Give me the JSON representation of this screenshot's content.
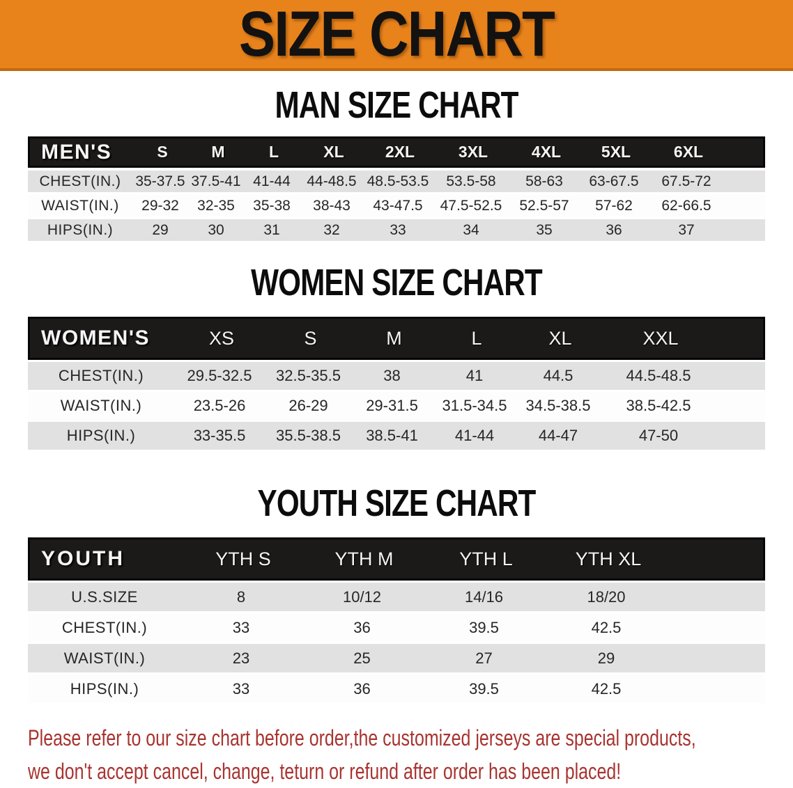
{
  "banner": {
    "title": "SIZE CHART"
  },
  "sections": [
    {
      "id": "men",
      "heading": "MAN SIZE CHART",
      "header": [
        "MEN'S",
        "S",
        "M",
        "L",
        "XL",
        "2XL",
        "3XL",
        "4XL",
        "5XL",
        "6XL"
      ],
      "rows": [
        [
          "CHEST(IN.)",
          "35-37.5",
          "37.5-41",
          "41-44",
          "44-48.5",
          "48.5-53.5",
          "53.5-58",
          "58-63",
          "63-67.5",
          "67.5-72"
        ],
        [
          "WAIST(IN.)",
          "29-32",
          "32-35",
          "35-38",
          "38-43",
          "43-47.5",
          "47.5-52.5",
          "52.5-57",
          "57-62",
          "62-66.5"
        ],
        [
          "HIPS(IN.)",
          "29",
          "30",
          "31",
          "32",
          "33",
          "34",
          "35",
          "36",
          "37"
        ]
      ]
    },
    {
      "id": "women",
      "heading": "WOMEN SIZE CHART",
      "header": [
        "WOMEN'S",
        "XS",
        "S",
        "M",
        "L",
        "XL",
        "XXL"
      ],
      "rows": [
        [
          "CHEST(IN.)",
          "29.5-32.5",
          "32.5-35.5",
          "38",
          "41",
          "44.5",
          "44.5-48.5"
        ],
        [
          "WAIST(IN.)",
          "23.5-26",
          "26-29",
          "29-31.5",
          "31.5-34.5",
          "34.5-38.5",
          "38.5-42.5"
        ],
        [
          "HIPS(IN.)",
          "33-35.5",
          "35.5-38.5",
          "38.5-41",
          "41-44",
          "44-47",
          "47-50"
        ]
      ]
    },
    {
      "id": "youth",
      "heading": "YOUTH SIZE CHART",
      "header": [
        "YOUTH",
        "YTH S",
        "YTH M",
        "YTH L",
        "YTH XL"
      ],
      "rows": [
        [
          "U.S.SIZE",
          "8",
          "10/12",
          "14/16",
          "18/20"
        ],
        [
          "CHEST(IN.)",
          "33",
          "36",
          "39.5",
          "42.5"
        ],
        [
          "WAIST(IN.)",
          "23",
          "25",
          "27",
          "29"
        ],
        [
          "HIPS(IN.)",
          "33",
          "36",
          "39.5",
          "42.5"
        ]
      ]
    }
  ],
  "footer": {
    "line1": "Please refer to our size chart before order,the customized jerseys are special products,",
    "line2": "we don't accept cancel, change, teturn or refund after order has been placed!"
  },
  "colors": {
    "banner-bg": "#e8831c",
    "banner-edge": "#c2690f",
    "header-bg": "#1c1a19",
    "row-gray": "#e2e1e1",
    "row-white": "#fdfdfd",
    "footer-red": "#a83430"
  }
}
